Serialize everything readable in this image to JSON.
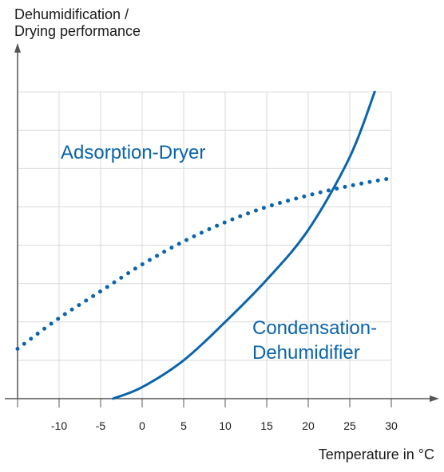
{
  "chart_data": {
    "type": "line",
    "ylabel": "Dehumidification /\nDrying performance",
    "xlabel": "Temperature in °C",
    "xlim": [
      -15,
      30
    ],
    "x_ticks": [
      -10,
      -5,
      0,
      5,
      10,
      15,
      20,
      25,
      30
    ],
    "x_tick_labels": [
      "-10",
      "-5",
      "0",
      "5",
      "10",
      "15",
      "20",
      "25",
      "30"
    ],
    "y_ticks": [
      1,
      2,
      3,
      4,
      5,
      6,
      7,
      8
    ],
    "ylim": [
      0,
      8.5
    ],
    "grid": true,
    "color": "#0a64ac",
    "series": [
      {
        "name": "Adsorption-Dryer",
        "style": "dotted",
        "x": [
          -15,
          -10,
          -5,
          0,
          5,
          10,
          15,
          20,
          25,
          30
        ],
        "y": [
          1.3,
          2.1,
          2.8,
          3.5,
          4.1,
          4.6,
          5.0,
          5.3,
          5.55,
          5.75
        ]
      },
      {
        "name": "Condensation-\nDehumidifier",
        "style": "solid",
        "x": [
          -3.5,
          0,
          5,
          10,
          15,
          20,
          25,
          28
        ],
        "y": [
          0,
          0.3,
          1.0,
          2.0,
          3.1,
          4.4,
          6.3,
          8.0
        ]
      }
    ]
  }
}
